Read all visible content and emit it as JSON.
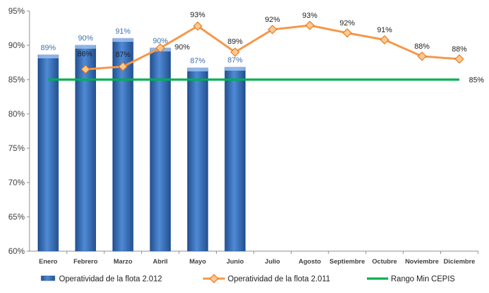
{
  "chart_data": {
    "type": "bar",
    "categories": [
      "Enero",
      "Febrero",
      "Marzo",
      "Abril",
      "Mayo",
      "Junio",
      "Julio",
      "Agosto",
      "Septiembre",
      "Octubre",
      "Noviembre",
      "Diciembre"
    ],
    "ylim": [
      60,
      95
    ],
    "yticks": [
      "60%",
      "65%",
      "70%",
      "75%",
      "80%",
      "85%",
      "90%",
      "95%"
    ],
    "grid": false,
    "legend_position": "bottom",
    "series": [
      {
        "name": "Operatividad de la flota 2.012",
        "kind": "bar",
        "color": "#3a74c0",
        "values": [
          88.6,
          90.0,
          91.0,
          89.6,
          86.7,
          86.8,
          null,
          null,
          null,
          null,
          null,
          null
        ],
        "labels": [
          "89%",
          "90%",
          "91%",
          "90%",
          "87%",
          "87%",
          "",
          "",
          "",
          "",
          "",
          ""
        ]
      },
      {
        "name": "Operatividad de la flota 2.011",
        "kind": "line",
        "color": "#f79646",
        "marker_color": "#fbc98f",
        "values": [
          null,
          86.5,
          86.9,
          89.6,
          92.8,
          89.0,
          92.3,
          92.9,
          91.8,
          90.8,
          88.4,
          88.0
        ],
        "labels": [
          "",
          "86%",
          "87%",
          "90%",
          "93%",
          "89%",
          "92%",
          "93%",
          "92%",
          "91%",
          "88%",
          "88%"
        ]
      },
      {
        "name": "Rango Min CEPIS",
        "kind": "line",
        "color": "#00b050",
        "values": [
          85,
          85,
          85,
          85,
          85,
          85,
          85,
          85,
          85,
          85,
          85,
          85
        ],
        "label": "85%"
      }
    ]
  }
}
